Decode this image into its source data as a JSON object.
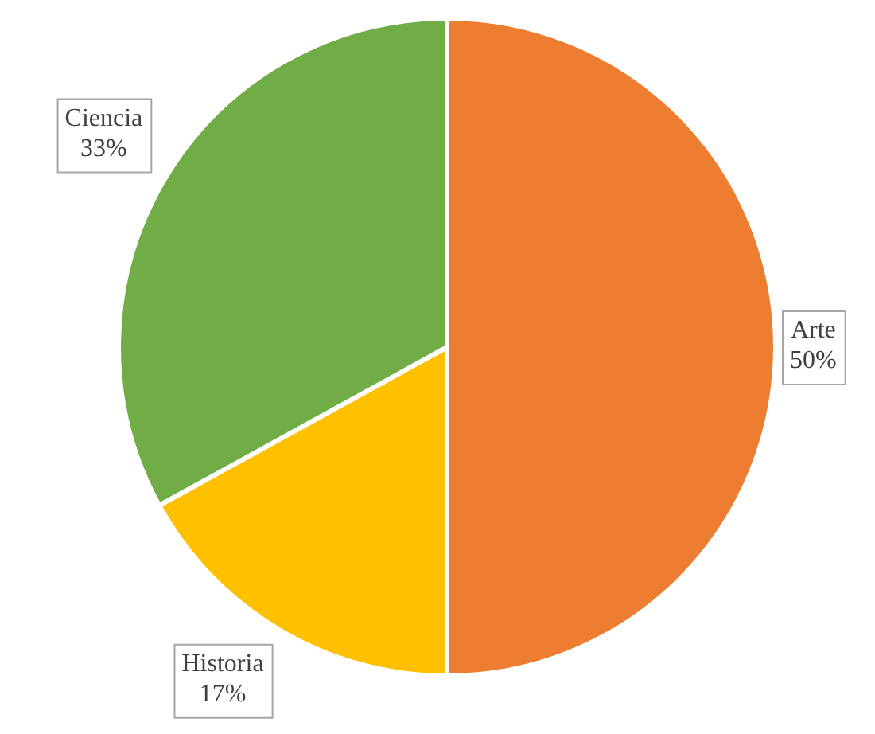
{
  "chart_data": {
    "type": "pie",
    "categories": [
      "Arte",
      "Historia",
      "Ciencia"
    ],
    "values": [
      50,
      17,
      33
    ],
    "colors": [
      "#ed7d31",
      "#ffc000",
      "#70ad47"
    ],
    "value_labels": [
      "50%",
      "17%",
      "33%"
    ],
    "legend": false
  }
}
